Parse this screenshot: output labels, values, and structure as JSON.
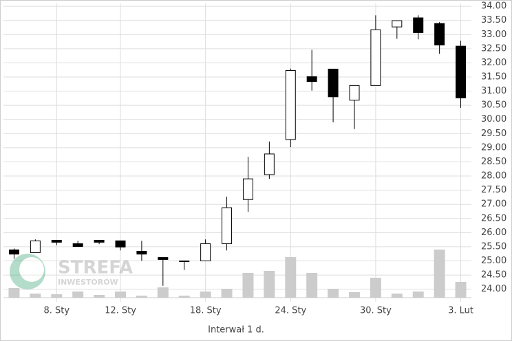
{
  "chart_data": {
    "type": "candlestick",
    "categories": [
      null,
      null,
      "8. Sty",
      null,
      null,
      "12. Sty",
      null,
      null,
      null,
      "18. Sty",
      null,
      null,
      null,
      "24. Sty",
      null,
      null,
      null,
      "30. Sty",
      null,
      null,
      null,
      "3. Lut"
    ],
    "open": [
      25.39,
      25.29,
      25.73,
      25.61,
      25.73,
      25.71,
      25.34,
      25.12,
      25.0,
      25.0,
      25.61,
      27.17,
      28.05,
      29.29,
      31.51,
      31.78,
      30.68,
      31.2,
      33.27,
      33.59,
      33.39,
      32.59
    ],
    "high": [
      25.44,
      25.76,
      25.73,
      25.71,
      25.73,
      25.71,
      25.71,
      25.12,
      25.0,
      25.76,
      27.27,
      28.68,
      29.22,
      31.8,
      32.46,
      31.78,
      31.2,
      33.68,
      33.49,
      33.68,
      33.44,
      32.78
    ],
    "low": [
      25.07,
      25.29,
      25.56,
      25.51,
      25.59,
      25.37,
      25.0,
      24.12,
      24.68,
      25.0,
      25.37,
      26.73,
      27.9,
      29.02,
      31.02,
      29.9,
      29.66,
      31.2,
      32.85,
      32.83,
      32.32,
      30.41
    ],
    "close": [
      25.24,
      25.71,
      25.66,
      25.51,
      25.66,
      25.49,
      25.24,
      25.05,
      25.0,
      25.61,
      26.88,
      27.9,
      28.78,
      31.73,
      31.34,
      30.8,
      31.2,
      33.17,
      33.49,
      33.07,
      32.63,
      30.76
    ],
    "volume": [
      14,
      6,
      5,
      9,
      4,
      9,
      3,
      15,
      3,
      9,
      13,
      36,
      39,
      59,
      36,
      13,
      8,
      29,
      6,
      9,
      70,
      23
    ],
    "ylim": [
      23.7,
      34.1
    ],
    "yticks": [
      {
        "value": 24,
        "label": "24.00"
      },
      {
        "value": 24.5,
        "label": "24.50"
      },
      {
        "value": 25,
        "label": "25.00"
      },
      {
        "value": 25.5,
        "label": "25.50"
      },
      {
        "value": 26,
        "label": "26.00"
      },
      {
        "value": 26.5,
        "label": "26.50"
      },
      {
        "value": 27,
        "label": "27.00"
      },
      {
        "value": 27.5,
        "label": "27.50"
      },
      {
        "value": 28,
        "label": "28.00"
      },
      {
        "value": 28.5,
        "label": "28.50"
      },
      {
        "value": 29,
        "label": "29.00"
      },
      {
        "value": 29.5,
        "label": "29.50"
      },
      {
        "value": 30,
        "label": "30.00"
      },
      {
        "value": 30.5,
        "label": "30.50"
      },
      {
        "value": 31,
        "label": "31.00"
      },
      {
        "value": 31.5,
        "label": "31.50"
      },
      {
        "value": 32,
        "label": "32.00"
      },
      {
        "value": 32.5,
        "label": "32.50"
      },
      {
        "value": 33,
        "label": "33.00"
      },
      {
        "value": 33.5,
        "label": "33.50"
      },
      {
        "value": 34,
        "label": "34.00"
      }
    ],
    "grid": true,
    "up_color": "#ffffff",
    "down_color": "#000000",
    "volume_color": "#cccccc",
    "xlabel": "Interwał 1 d.",
    "watermark": [
      "STREFA",
      "INWESTORÓW"
    ]
  }
}
